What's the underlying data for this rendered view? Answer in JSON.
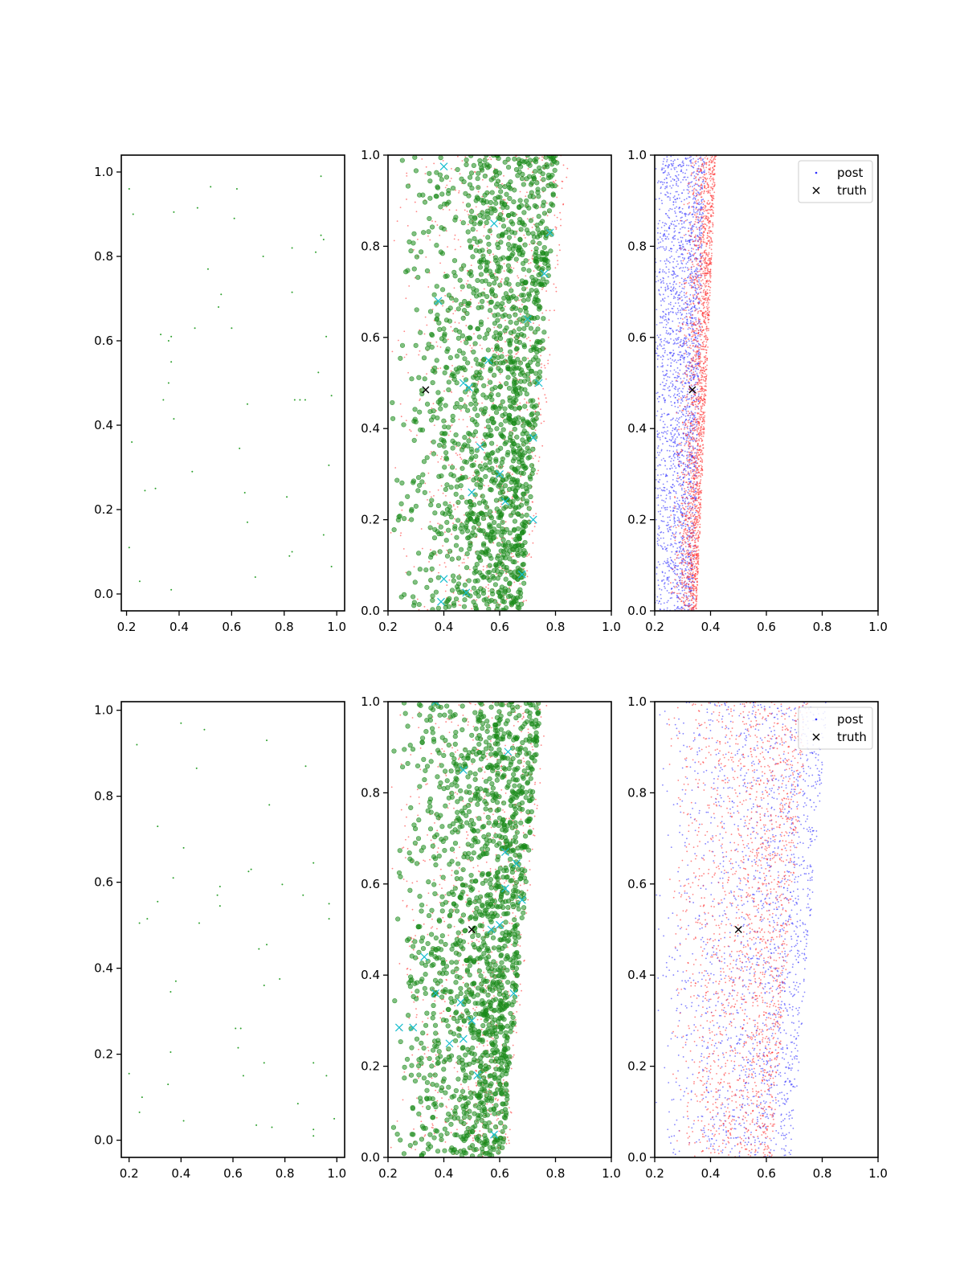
{
  "figure": {
    "rows": 2,
    "cols": 3
  },
  "colors": {
    "sparse": "#2ca02c",
    "green_dots": "#1a8a1a",
    "red_dots": "#ff3030",
    "blue_dots": "#3030ff",
    "cyan_markers": "#17becf",
    "truth": "#000000",
    "axes": "#000000"
  },
  "chart_data": [
    {
      "panel": "row1-col1",
      "type": "scatter",
      "xlim": [
        0.18,
        1.03
      ],
      "ylim": [
        -0.04,
        1.04
      ],
      "xticks": [
        "0.2",
        "0.4",
        "0.6",
        "0.8",
        "1.0"
      ],
      "xtick_values": [
        0.2,
        0.4,
        0.6,
        0.8,
        1.0
      ],
      "yticks": [
        "0.0",
        "0.2",
        "0.4",
        "0.6",
        "0.8",
        "1.0"
      ],
      "ytick_values": [
        0,
        0.2,
        0.4,
        0.6,
        0.8,
        1.0
      ],
      "series": [
        {
          "color": "sparse",
          "marker": "dot",
          "points": [
            [
              0.21,
              0.96
            ],
            [
              0.225,
              0.9
            ],
            [
              0.38,
              0.905
            ],
            [
              0.47,
              0.915
            ],
            [
              0.52,
              0.965
            ],
            [
              0.61,
              0.89
            ],
            [
              0.62,
              0.96
            ],
            [
              0.94,
              0.99
            ],
            [
              0.72,
              0.8
            ],
            [
              0.83,
              0.82
            ],
            [
              0.92,
              0.81
            ],
            [
              0.94,
              0.85
            ],
            [
              0.95,
              0.84
            ],
            [
              0.51,
              0.77
            ],
            [
              0.56,
              0.71
            ],
            [
              0.55,
              0.68
            ],
            [
              0.6,
              0.63
            ],
            [
              0.46,
              0.63
            ],
            [
              0.33,
              0.615
            ],
            [
              0.37,
              0.61
            ],
            [
              0.36,
              0.6
            ],
            [
              0.83,
              0.715
            ],
            [
              0.96,
              0.61
            ],
            [
              0.37,
              0.55
            ],
            [
              0.93,
              0.525
            ],
            [
              0.36,
              0.5
            ],
            [
              0.34,
              0.46
            ],
            [
              0.84,
              0.46
            ],
            [
              0.86,
              0.46
            ],
            [
              0.88,
              0.46
            ],
            [
              0.98,
              0.47
            ],
            [
              0.66,
              0.45
            ],
            [
              0.38,
              0.415
            ],
            [
              0.22,
              0.36
            ],
            [
              0.63,
              0.345
            ],
            [
              0.45,
              0.29
            ],
            [
              0.97,
              0.305
            ],
            [
              0.27,
              0.245
            ],
            [
              0.31,
              0.25
            ],
            [
              0.65,
              0.24
            ],
            [
              0.81,
              0.23
            ],
            [
              0.66,
              0.17
            ],
            [
              0.95,
              0.14
            ],
            [
              0.21,
              0.11
            ],
            [
              0.83,
              0.1
            ],
            [
              0.25,
              0.03
            ],
            [
              0.37,
              0.01
            ],
            [
              0.69,
              0.04
            ],
            [
              0.82,
              0.09
            ],
            [
              0.98,
              0.065
            ]
          ]
        }
      ]
    },
    {
      "panel": "row1-col2",
      "type": "scatter",
      "xlim": [
        0.2,
        1.0
      ],
      "ylim": [
        0.0,
        1.0
      ],
      "xticks": [
        "0.2",
        "0.4",
        "0.6",
        "0.8",
        "1.0"
      ],
      "xtick_values": [
        0.2,
        0.4,
        0.6,
        0.8,
        1.0
      ],
      "yticks": [
        "0.0",
        "0.2",
        "0.4",
        "0.6",
        "0.8",
        "1.0"
      ],
      "ytick_values": [
        0,
        0.2,
        0.4,
        0.6,
        0.8,
        1.0
      ],
      "clouds": [
        {
          "color": "red_dots",
          "marker": "small-dot",
          "count": 900,
          "x_left": [
            0.2,
            0.2
          ],
          "x_right": [
            0.7,
            0.85
          ],
          "bias": 0.55
        },
        {
          "color": "green_dots",
          "marker": "circle",
          "count": 1500,
          "x_left": [
            0.2,
            0.2
          ],
          "x_right": [
            0.68,
            0.81
          ],
          "bias": 0.45
        }
      ],
      "markers": [
        {
          "color": "cyan_markers",
          "marker": "x",
          "points": [
            [
              0.4,
              0.975
            ],
            [
              0.38,
              0.68
            ],
            [
              0.47,
              0.5
            ],
            [
              0.49,
              0.49
            ],
            [
              0.72,
              0.38
            ],
            [
              0.78,
              0.83
            ],
            [
              0.76,
              0.74
            ],
            [
              0.58,
              0.85
            ],
            [
              0.6,
              0.3
            ],
            [
              0.48,
              0.04
            ],
            [
              0.39,
              0.02
            ],
            [
              0.7,
              0.64
            ],
            [
              0.74,
              0.5
            ],
            [
              0.53,
              0.36
            ],
            [
              0.62,
              0.24
            ],
            [
              0.56,
              0.55
            ],
            [
              0.68,
              0.08
            ],
            [
              0.5,
              0.26
            ],
            [
              0.4,
              0.07
            ],
            [
              0.72,
              0.2
            ]
          ]
        },
        {
          "color": "truth",
          "marker": "x",
          "points": [
            [
              0.335,
              0.485
            ]
          ]
        }
      ]
    },
    {
      "panel": "row1-col3",
      "type": "scatter",
      "xlim": [
        0.2,
        1.0
      ],
      "ylim": [
        0.0,
        1.0
      ],
      "xticks": [
        "0.2",
        "0.4",
        "0.6",
        "0.8",
        "1.0"
      ],
      "xtick_values": [
        0.2,
        0.4,
        0.6,
        0.8,
        1.0
      ],
      "yticks": [
        "0.0",
        "0.2",
        "0.4",
        "0.6",
        "0.8",
        "1.0"
      ],
      "ytick_values": [
        0,
        0.2,
        0.4,
        0.6,
        0.8,
        1.0
      ],
      "clouds": [
        {
          "color": "blue_dots",
          "marker": "small-dot",
          "count": 2200,
          "x_left": [
            0.2,
            0.2
          ],
          "x_right": [
            0.34,
            0.38
          ],
          "bias": 0.7
        },
        {
          "color": "red_dots",
          "marker": "small-dot",
          "count": 2000,
          "x_left": [
            0.24,
            0.29
          ],
          "x_right": [
            0.35,
            0.42
          ],
          "bias": 0.35
        }
      ],
      "markers": [
        {
          "color": "truth",
          "marker": "x",
          "points": [
            [
              0.335,
              0.485
            ]
          ]
        }
      ],
      "legend": {
        "position": "upper right",
        "entries": [
          {
            "label": "post",
            "marker": "dot",
            "color": "blue_dots"
          },
          {
            "label": "truth",
            "marker": "x",
            "color": "truth"
          }
        ]
      }
    },
    {
      "panel": "row2-col1",
      "type": "scatter",
      "xlim": [
        0.17,
        1.03
      ],
      "ylim": [
        -0.04,
        1.02
      ],
      "xticks": [
        "0.2",
        "0.4",
        "0.6",
        "0.8",
        "1.0"
      ],
      "xtick_values": [
        0.2,
        0.4,
        0.6,
        0.8,
        1.0
      ],
      "yticks": [
        "0.0",
        "0.2",
        "0.4",
        "0.6",
        "0.8",
        "1.0"
      ],
      "ytick_values": [
        0,
        0.2,
        0.4,
        0.6,
        0.8,
        1.0
      ],
      "series": [
        {
          "color": "sparse",
          "marker": "dot",
          "points": [
            [
              0.23,
              0.92
            ],
            [
              0.4,
              0.97
            ],
            [
              0.49,
              0.955
            ],
            [
              0.73,
              0.93
            ],
            [
              0.46,
              0.865
            ],
            [
              0.88,
              0.87
            ],
            [
              0.31,
              0.73
            ],
            [
              0.41,
              0.68
            ],
            [
              0.74,
              0.78
            ],
            [
              0.37,
              0.61
            ],
            [
              0.55,
              0.59
            ],
            [
              0.54,
              0.57
            ],
            [
              0.55,
              0.545
            ],
            [
              0.66,
              0.625
            ],
            [
              0.67,
              0.63
            ],
            [
              0.79,
              0.595
            ],
            [
              0.91,
              0.645
            ],
            [
              0.31,
              0.555
            ],
            [
              0.27,
              0.515
            ],
            [
              0.24,
              0.505
            ],
            [
              0.47,
              0.505
            ],
            [
              0.87,
              0.57
            ],
            [
              0.97,
              0.55
            ],
            [
              0.97,
              0.515
            ],
            [
              0.7,
              0.445
            ],
            [
              0.73,
              0.455
            ],
            [
              0.38,
              0.37
            ],
            [
              0.36,
              0.345
            ],
            [
              0.72,
              0.36
            ],
            [
              0.78,
              0.375
            ],
            [
              0.61,
              0.26
            ],
            [
              0.63,
              0.26
            ],
            [
              0.36,
              0.205
            ],
            [
              0.62,
              0.215
            ],
            [
              0.35,
              0.13
            ],
            [
              0.72,
              0.18
            ],
            [
              0.91,
              0.18
            ],
            [
              0.64,
              0.15
            ],
            [
              0.96,
              0.15
            ],
            [
              0.2,
              0.155
            ],
            [
              0.25,
              0.1
            ],
            [
              0.85,
              0.085
            ],
            [
              0.41,
              0.045
            ],
            [
              0.24,
              0.065
            ],
            [
              0.69,
              0.035
            ],
            [
              0.75,
              0.03
            ],
            [
              0.91,
              0.025
            ],
            [
              0.91,
              0.01
            ],
            [
              0.99,
              0.05
            ]
          ]
        }
      ]
    },
    {
      "panel": "row2-col2",
      "type": "scatter",
      "xlim": [
        0.2,
        1.0
      ],
      "ylim": [
        0.0,
        1.0
      ],
      "xticks": [
        "0.2",
        "0.4",
        "0.6",
        "0.8",
        "1.0"
      ],
      "xtick_values": [
        0.2,
        0.4,
        0.6,
        0.8,
        1.0
      ],
      "yticks": [
        "0.0",
        "0.2",
        "0.4",
        "0.6",
        "0.8",
        "1.0"
      ],
      "ytick_values": [
        0,
        0.2,
        0.4,
        0.6,
        0.8,
        1.0
      ],
      "clouds": [
        {
          "color": "red_dots",
          "marker": "small-dot",
          "count": 900,
          "x_left": [
            0.2,
            0.2
          ],
          "x_right": [
            0.63,
            0.77
          ],
          "bias": 0.55
        },
        {
          "color": "green_dots",
          "marker": "circle",
          "count": 1500,
          "x_left": [
            0.2,
            0.2
          ],
          "x_right": [
            0.61,
            0.75
          ],
          "bias": 0.45
        }
      ],
      "markers": [
        {
          "color": "cyan_markers",
          "marker": "x",
          "points": [
            [
              0.37,
              1.0
            ],
            [
              0.47,
              0.85
            ],
            [
              0.62,
              0.67
            ],
            [
              0.68,
              0.565
            ],
            [
              0.66,
              0.645
            ],
            [
              0.6,
              0.51
            ],
            [
              0.65,
              0.36
            ],
            [
              0.24,
              0.285
            ],
            [
              0.29,
              0.285
            ],
            [
              0.37,
              0.36
            ],
            [
              0.46,
              0.34
            ],
            [
              0.47,
              0.26
            ],
            [
              0.52,
              0.18
            ],
            [
              0.58,
              0.05
            ],
            [
              0.33,
              0.44
            ],
            [
              0.62,
              0.59
            ],
            [
              0.57,
              0.5
            ],
            [
              0.5,
              0.3
            ],
            [
              0.42,
              0.25
            ],
            [
              0.63,
              0.89
            ]
          ]
        },
        {
          "color": "truth",
          "marker": "x",
          "points": [
            [
              0.5,
              0.5
            ]
          ]
        }
      ]
    },
    {
      "panel": "row2-col3",
      "type": "scatter",
      "xlim": [
        0.2,
        1.0
      ],
      "ylim": [
        0.0,
        1.0
      ],
      "xticks": [
        "0.2",
        "0.4",
        "0.6",
        "0.8",
        "1.0"
      ],
      "xtick_values": [
        0.2,
        0.4,
        0.6,
        0.8,
        1.0
      ],
      "yticks": [
        "0.0",
        "0.2",
        "0.4",
        "0.6",
        "0.8",
        "1.0"
      ],
      "ytick_values": [
        0,
        0.2,
        0.4,
        0.6,
        0.8,
        1.0
      ],
      "clouds": [
        {
          "color": "blue_dots",
          "marker": "small-dot",
          "count": 1800,
          "x_left": [
            0.2,
            0.2
          ],
          "x_right": [
            0.69,
            0.82
          ],
          "bias": 0.55
        },
        {
          "color": "red_dots",
          "marker": "small-dot",
          "count": 1800,
          "x_left": [
            0.27,
            0.22
          ],
          "x_right": [
            0.62,
            0.75
          ],
          "bias": 0.55
        }
      ],
      "markers": [
        {
          "color": "truth",
          "marker": "x",
          "points": [
            [
              0.5,
              0.5
            ]
          ]
        }
      ],
      "legend": {
        "position": "upper right",
        "entries": [
          {
            "label": "post",
            "marker": "dot",
            "color": "blue_dots"
          },
          {
            "label": "truth",
            "marker": "x",
            "color": "truth"
          }
        ]
      }
    }
  ]
}
